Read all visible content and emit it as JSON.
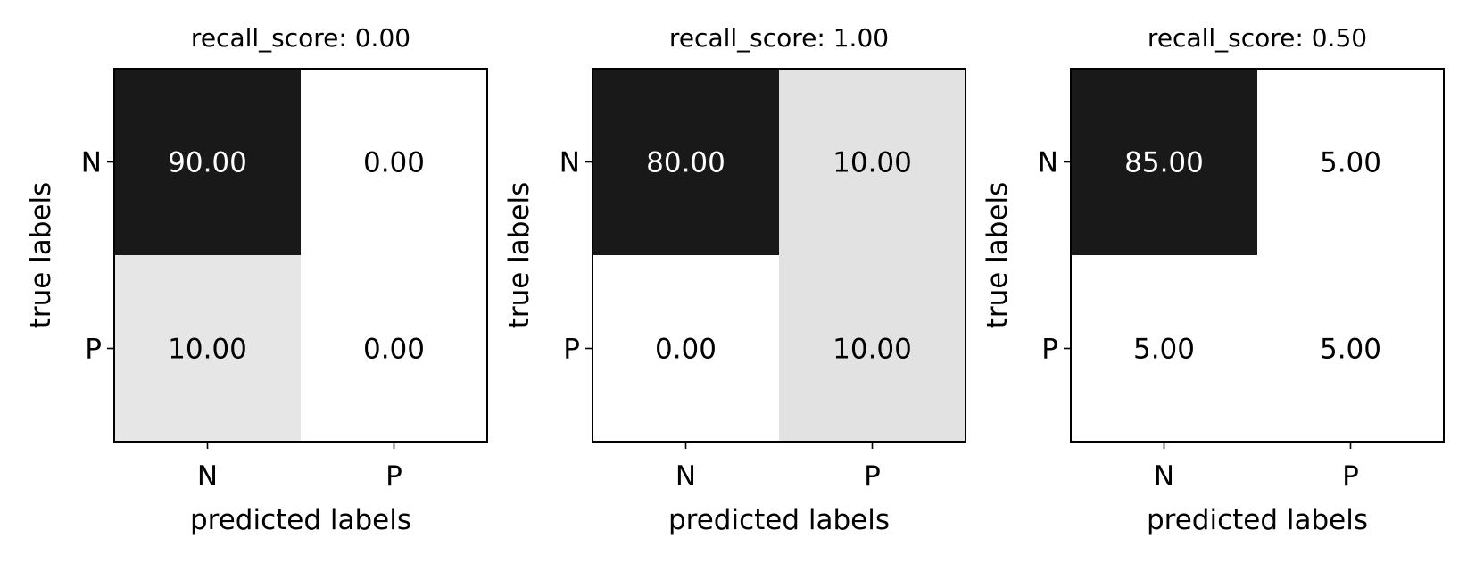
{
  "chart_data": [
    {
      "type": "heatmap",
      "title": "recall_score: 0.00",
      "xlabel": "predicted labels",
      "ylabel": "true labels",
      "x_categories": [
        "N",
        "P"
      ],
      "y_categories": [
        "N",
        "P"
      ],
      "values": [
        [
          90.0,
          0.0
        ],
        [
          10.0,
          0.0
        ]
      ],
      "cell_labels": [
        [
          "90.00",
          "0.00"
        ],
        [
          "10.00",
          "0.00"
        ]
      ],
      "colormap": "Greys"
    },
    {
      "type": "heatmap",
      "title": "recall_score: 1.00",
      "xlabel": "predicted labels",
      "ylabel": "true labels",
      "x_categories": [
        "N",
        "P"
      ],
      "y_categories": [
        "N",
        "P"
      ],
      "values": [
        [
          80.0,
          10.0
        ],
        [
          0.0,
          10.0
        ]
      ],
      "cell_labels": [
        [
          "80.00",
          "10.00"
        ],
        [
          "0.00",
          "10.00"
        ]
      ],
      "colormap": "Greys"
    },
    {
      "type": "heatmap",
      "title": "recall_score: 0.50",
      "xlabel": "predicted labels",
      "ylabel": "true labels",
      "x_categories": [
        "N",
        "P"
      ],
      "y_categories": [
        "N",
        "P"
      ],
      "values": [
        [
          85.0,
          5.0
        ],
        [
          5.0,
          5.0
        ]
      ],
      "cell_labels": [
        [
          "85.00",
          "5.00"
        ],
        [
          "5.00",
          "5.00"
        ]
      ],
      "colormap": "Greys"
    }
  ],
  "colors": {
    "low": "#ffffff",
    "high": "#000000",
    "light_text": "#ffffff",
    "dark_text": "#000000",
    "axis": "#000000"
  }
}
